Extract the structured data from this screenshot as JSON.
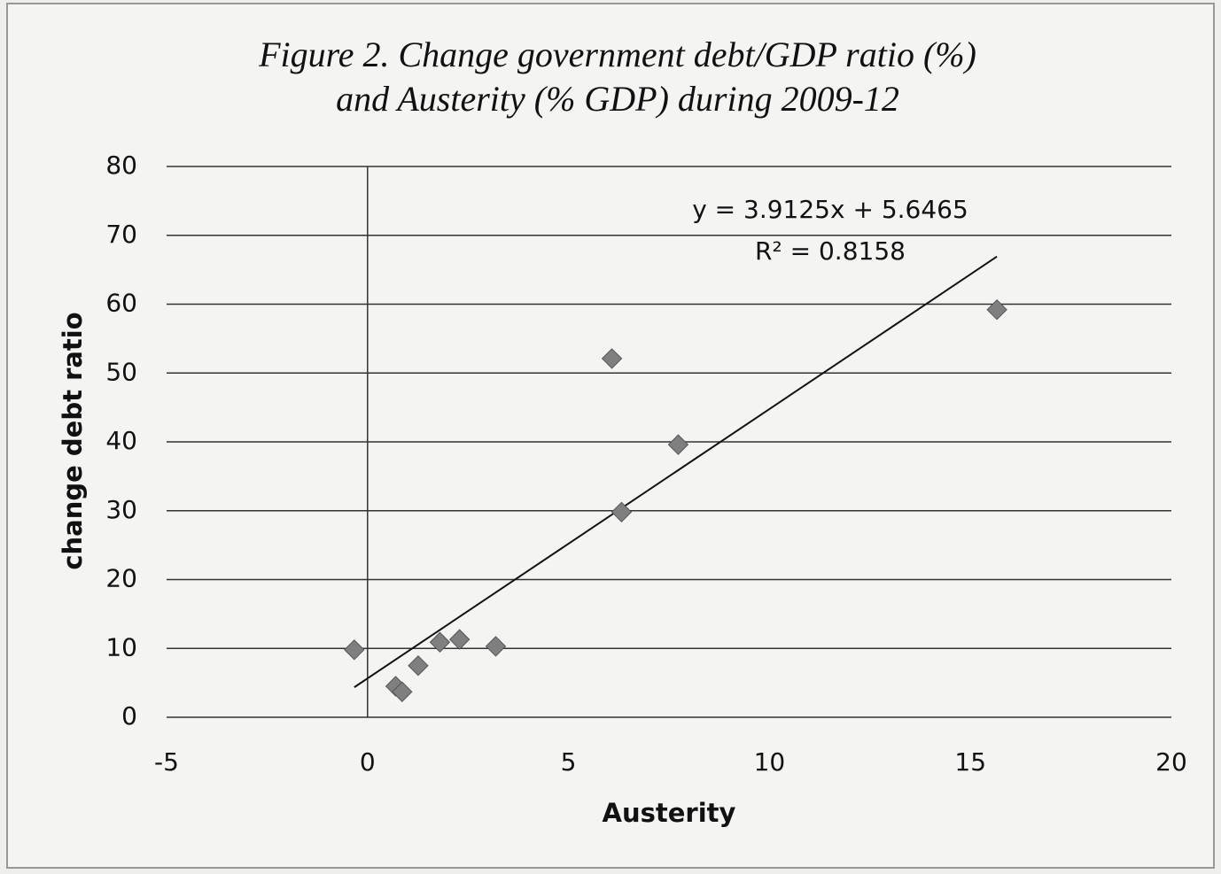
{
  "chart_data": {
    "type": "scatter",
    "title": [
      "Figure 2. Change government debt/GDP ratio (%)",
      "and Austerity (% GDP)  during 2009-12"
    ],
    "x_label": "Austerity",
    "y_label": "change debt ratio",
    "x": [
      -0.33,
      0.7,
      0.86,
      1.26,
      1.8,
      2.29,
      3.19,
      6.08,
      6.32,
      7.73,
      15.66
    ],
    "values": [
      9.8,
      4.5,
      3.7,
      7.5,
      10.9,
      11.3,
      10.3,
      52.1,
      29.8,
      39.6,
      59.2
    ],
    "color": "#7f7f7f",
    "xlim": [
      -5,
      20
    ],
    "xticks": [
      -5,
      0,
      5,
      10,
      15,
      20
    ],
    "ylim": [
      0,
      80
    ],
    "yticks": [
      0,
      10,
      20,
      30,
      40,
      50,
      60,
      70,
      80
    ],
    "grid": true,
    "trendline": {
      "slope": 3.9125,
      "intercept": 5.6465,
      "label": "y = 3.9125x + 5.6465",
      "r2": 0.8158,
      "r2_label": "R² = 0.8158"
    }
  }
}
